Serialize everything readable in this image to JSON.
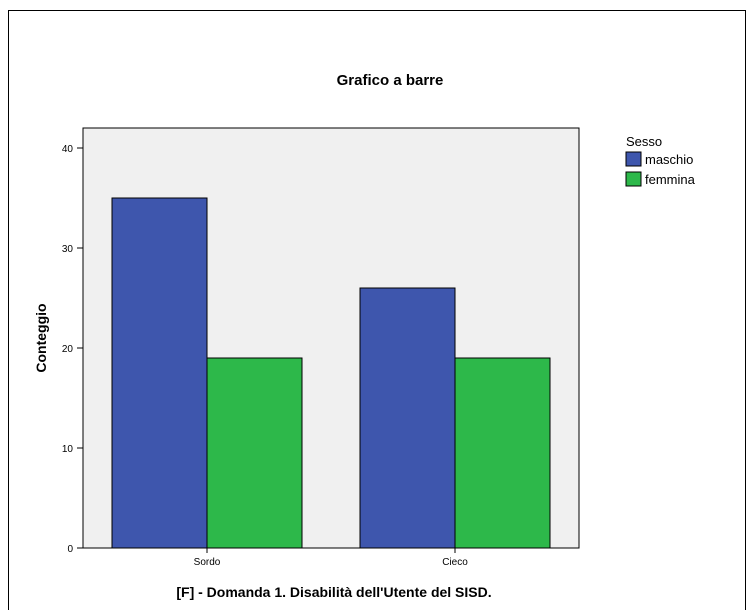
{
  "chart_data": {
    "type": "bar",
    "title": "Grafico a barre",
    "xlabel": "[F] - Domanda 1. Disabilità dell'Utente del SISD.",
    "ylabel": "Conteggio",
    "categories": [
      "Sordo",
      "Cieco"
    ],
    "series": [
      {
        "name": "maschio",
        "values": [
          35,
          26
        ],
        "color": "#3e56ad"
      },
      {
        "name": "femmina",
        "values": [
          19,
          19
        ],
        "color": "#2db84a"
      }
    ],
    "ylim": [
      0,
      42
    ],
    "yticks": [
      0,
      10,
      20,
      30,
      40
    ],
    "grid": false,
    "legend": {
      "title": "Sesso",
      "placement": "right"
    },
    "plot_background": "#f0f0f0"
  }
}
